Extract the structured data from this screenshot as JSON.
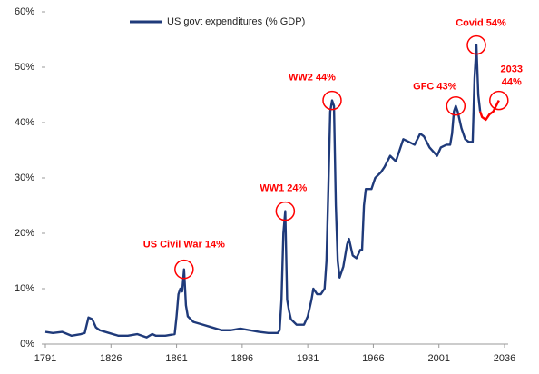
{
  "chart_data": {
    "type": "line",
    "x": [
      1791,
      1795,
      1800,
      1805,
      1810,
      1812,
      1814,
      1816,
      1818,
      1820,
      1825,
      1830,
      1835,
      1840,
      1845,
      1848,
      1850,
      1855,
      1860,
      1861,
      1862,
      1863,
      1864,
      1865,
      1866,
      1867,
      1870,
      1875,
      1880,
      1885,
      1890,
      1895,
      1900,
      1905,
      1910,
      1915,
      1916,
      1917,
      1918,
      1919,
      1920,
      1921,
      1922,
      1925,
      1929,
      1931,
      1933,
      1934,
      1936,
      1938,
      1940,
      1941,
      1942,
      1943,
      1944,
      1945,
      1946,
      1947,
      1948,
      1950,
      1951,
      1952,
      1953,
      1955,
      1957,
      1959,
      1960,
      1961,
      1962,
      1965,
      1967,
      1970,
      1972,
      1975,
      1978,
      1980,
      1982,
      1985,
      1988,
      1991,
      1993,
      1996,
      2000,
      2002,
      2005,
      2007,
      2008,
      2009,
      2010,
      2011,
      2013,
      2015,
      2017,
      2019,
      2020,
      2021,
      2022,
      2023,
      2024,
      2026,
      2028,
      2030,
      2033
    ],
    "series": [
      {
        "name": "US govt expenditures (% GDP)",
        "color": "#1f3a7a",
        "values": [
          2.2,
          2.0,
          2.2,
          1.5,
          1.8,
          2.0,
          4.8,
          4.5,
          3.0,
          2.5,
          2.0,
          1.5,
          1.5,
          1.8,
          1.2,
          1.8,
          1.5,
          1.5,
          1.8,
          5,
          9,
          10,
          9.5,
          13.5,
          7,
          5,
          4,
          3.5,
          3,
          2.5,
          2.5,
          2.8,
          2.5,
          2.2,
          2.0,
          2.0,
          2.5,
          8,
          20,
          24,
          8,
          6,
          4.5,
          3.5,
          3.5,
          5,
          8,
          10,
          9,
          9,
          10,
          15,
          28,
          42,
          44,
          43,
          25,
          15,
          12,
          14,
          16,
          18,
          19,
          16,
          15.5,
          17,
          17,
          25,
          28,
          28,
          30,
          31,
          32,
          34,
          33,
          35,
          37,
          36.5,
          36,
          38,
          37.5,
          35.5,
          34,
          35.5,
          36,
          36,
          38,
          42,
          43,
          42,
          39,
          37,
          36.5,
          36.5,
          48,
          54,
          45,
          42,
          null,
          null,
          null,
          null,
          null
        ]
      },
      {
        "color": "#ff0000",
        "values": [
          null,
          null,
          null,
          null,
          null,
          null,
          null,
          null,
          null,
          null,
          null,
          null,
          null,
          null,
          null,
          null,
          null,
          null,
          null,
          null,
          null,
          null,
          null,
          null,
          null,
          null,
          null,
          null,
          null,
          null,
          null,
          null,
          null,
          null,
          null,
          null,
          null,
          null,
          null,
          null,
          null,
          null,
          null,
          null,
          null,
          null,
          null,
          null,
          null,
          null,
          null,
          null,
          null,
          null,
          null,
          null,
          null,
          null,
          null,
          null,
          null,
          null,
          null,
          null,
          null,
          null,
          null,
          null,
          null,
          null,
          null,
          null,
          null,
          null,
          null,
          null,
          null,
          null,
          null,
          null,
          null,
          null,
          null,
          null,
          null,
          null,
          null,
          null,
          null,
          null,
          null,
          null,
          null,
          null,
          null,
          null,
          null,
          42,
          41,
          40.5,
          41.5,
          42,
          44
        ]
      }
    ],
    "annotations": [
      {
        "lines": [
          "US Civil War 14%"
        ],
        "x": 1865,
        "y": 13.5
      },
      {
        "lines": [
          "WW1 24%"
        ],
        "x": 1919,
        "y": 24
      },
      {
        "lines": [
          "WW2 44%"
        ],
        "x": 1944,
        "y": 44
      },
      {
        "lines": [
          "GFC 43%"
        ],
        "x": 2010,
        "y": 43
      },
      {
        "lines": [
          "Covid 54%"
        ],
        "x": 2021,
        "y": 54
      },
      {
        "lines": [
          "2033",
          "44%"
        ],
        "x": 2033,
        "y": 44
      }
    ],
    "annotation_color": "#ff0000",
    "xlim": [
      1791,
      2036
    ],
    "xticks": [
      1791,
      1826,
      1861,
      1896,
      1931,
      1966,
      2001,
      2036
    ],
    "ylim": [
      0,
      60
    ],
    "yticks": [
      {
        "value": 0,
        "label": "0%"
      },
      {
        "value": 10,
        "label": "10%"
      },
      {
        "value": 20,
        "label": "20%"
      },
      {
        "value": 30,
        "label": "30%"
      },
      {
        "value": 40,
        "label": "40%"
      },
      {
        "value": 50,
        "label": "50%"
      },
      {
        "value": 60,
        "label": "60%"
      }
    ],
    "legend": "top"
  }
}
